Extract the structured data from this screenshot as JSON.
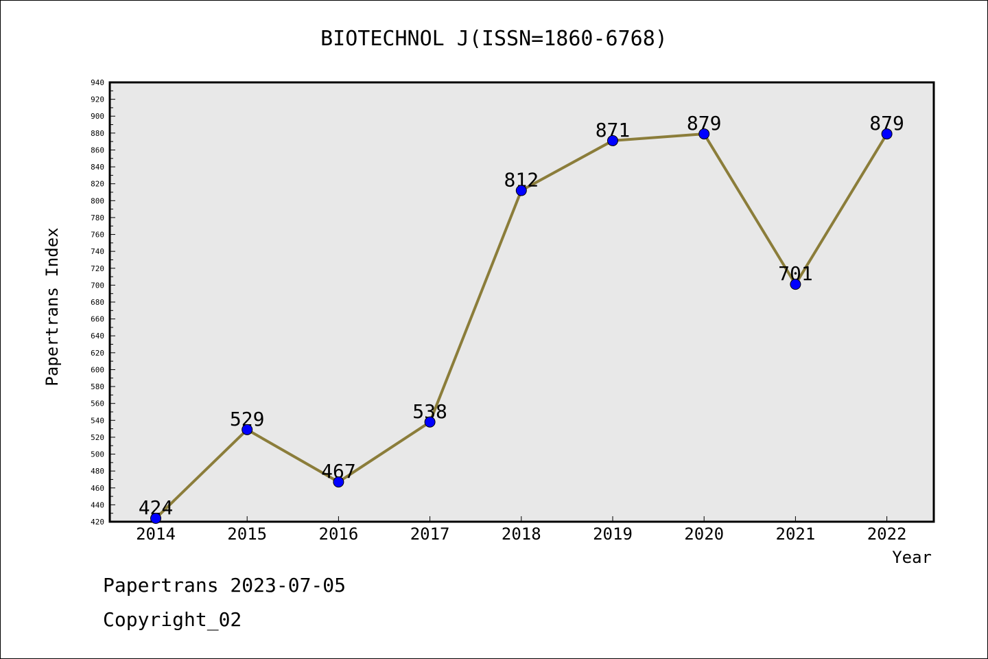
{
  "chart_data": {
    "type": "line",
    "title": "BIOTECHNOL J(ISSN=1860-6768)",
    "xlabel": "Year",
    "ylabel": "Papertrans Index",
    "categories": [
      "2014",
      "2015",
      "2016",
      "2017",
      "2018",
      "2019",
      "2020",
      "2021",
      "2022"
    ],
    "values": [
      424,
      529,
      467,
      538,
      812,
      871,
      879,
      701,
      879
    ],
    "data_labels": [
      "424",
      "529",
      "467",
      "538",
      "812",
      "871",
      "879",
      "701",
      "879"
    ],
    "ylim": [
      420,
      940
    ],
    "yticks": [
      "420",
      "440",
      "460",
      "480",
      "500",
      "520",
      "540",
      "560",
      "580",
      "600",
      "620",
      "640",
      "660",
      "680",
      "700",
      "720",
      "740",
      "760",
      "780",
      "800",
      "820",
      "840",
      "860",
      "880",
      "900",
      "920",
      "940"
    ],
    "grid": false,
    "legend": "none",
    "colors": {
      "line": "#8B7D3A",
      "marker": "#0000FF",
      "plot_bg": "#E8E8E8"
    }
  },
  "footer": {
    "line1": "Papertrans 2023-07-05",
    "line2": "Copyright_02"
  }
}
